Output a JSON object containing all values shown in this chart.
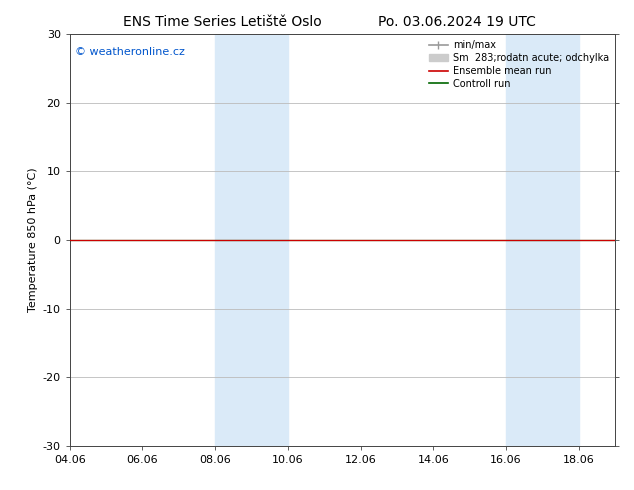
{
  "title_left": "ENS Time Series Letiště Oslo",
  "title_right": "Po. 03.06.2024 19 UTC",
  "ylabel": "Temperature 850 hPa (°C)",
  "watermark": "© weatheronline.cz",
  "watermark_color": "#0055cc",
  "ylim": [
    -30,
    30
  ],
  "yticks": [
    -30,
    -20,
    -10,
    0,
    10,
    20,
    30
  ],
  "xtick_labels": [
    "04.06",
    "06.06",
    "08.06",
    "10.06",
    "12.06",
    "14.06",
    "16.06",
    "18.06"
  ],
  "xtick_positions": [
    0,
    2,
    4,
    6,
    8,
    10,
    12,
    14
  ],
  "x_min": 0,
  "x_max": 15,
  "shaded_bands": [
    {
      "xstart": 4,
      "xend": 6
    },
    {
      "xstart": 12,
      "xend": 14
    }
  ],
  "shaded_color": "#daeaf8",
  "ensemble_mean_color": "#cc0000",
  "control_run_color": "#006600",
  "control_run_y": 0.0,
  "ensemble_mean_y": 0.0,
  "minmax_color": "#999999",
  "spread_color": "#cccccc",
  "legend_label_minmax": "min/max",
  "legend_label_spread": "Sm  283;rodatn acute; odchylka",
  "legend_label_ensemble": "Ensemble mean run",
  "legend_label_control": "Controll run",
  "bg_color": "#ffffff",
  "grid_color": "#bbbbbb",
  "axes_color": "#444444",
  "font_size": 8,
  "title_font_size": 10,
  "watermark_font_size": 8
}
